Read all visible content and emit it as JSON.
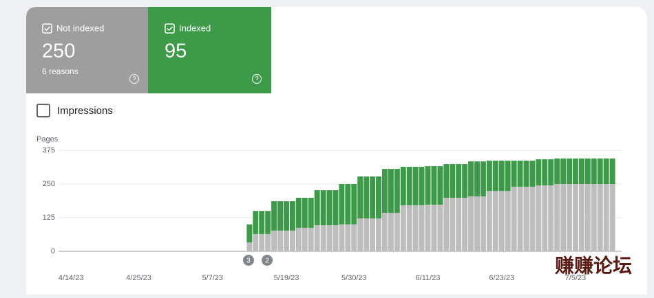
{
  "cards": [
    {
      "count": 250,
      "note": "6 reasons"
    },
    {
      "count": 95
    }
  ],
  "toggle": "Impressions",
  "watermark": "赚赚论坛",
  "chart_data": {
    "type": "bar",
    "stacked": true,
    "y_label": "Pages",
    "ylim": [
      0,
      375
    ],
    "yticks": [
      0,
      125,
      250,
      375
    ],
    "grid": true,
    "annotations": [
      "3",
      "2"
    ],
    "categories": [
      null,
      null,
      null,
      null,
      "4/14/23",
      null,
      null,
      null,
      null,
      null,
      null,
      null,
      null,
      null,
      null,
      "4/25/23",
      null,
      null,
      null,
      null,
      null,
      null,
      null,
      null,
      null,
      null,
      null,
      "5/7/23",
      null,
      null,
      null,
      null,
      null,
      null,
      null,
      null,
      null,
      null,
      null,
      "5/19/23",
      null,
      null,
      null,
      null,
      null,
      null,
      null,
      null,
      null,
      null,
      "5/30/23",
      null,
      null,
      null,
      null,
      null,
      null,
      null,
      null,
      null,
      null,
      null,
      "6/11/23",
      null,
      null,
      null,
      null,
      null,
      null,
      null,
      null,
      null,
      null,
      null,
      "6/23/23",
      null,
      null,
      null,
      null,
      null,
      null,
      null,
      null,
      null,
      null,
      null,
      "7/5/23",
      null,
      null,
      null,
      null,
      null,
      null,
      null
    ],
    "series": [
      {
        "name": "Not indexed",
        "color": "#bdbdbd",
        "values": [
          null,
          null,
          null,
          null,
          null,
          null,
          null,
          null,
          null,
          null,
          null,
          null,
          null,
          null,
          null,
          null,
          null,
          null,
          null,
          null,
          null,
          null,
          null,
          null,
          null,
          null,
          null,
          null,
          null,
          null,
          null,
          null,
          null,
          33,
          64,
          64,
          64,
          77,
          77,
          77,
          77,
          87,
          87,
          87,
          97,
          97,
          97,
          97,
          100,
          100,
          100,
          122,
          122,
          122,
          122,
          143,
          143,
          143,
          171,
          171,
          171,
          171,
          173,
          173,
          173,
          199,
          199,
          199,
          199,
          204,
          204,
          204,
          224,
          224,
          224,
          224,
          240,
          240,
          240,
          240,
          245,
          245,
          245,
          250,
          250,
          250,
          250,
          250,
          250,
          250,
          250,
          250,
          250,
          null
        ]
      },
      {
        "name": "Indexed",
        "color": "#3c9a48",
        "values": [
          null,
          null,
          null,
          null,
          null,
          null,
          null,
          null,
          null,
          null,
          null,
          null,
          null,
          null,
          null,
          null,
          null,
          null,
          null,
          null,
          null,
          null,
          null,
          null,
          null,
          null,
          null,
          null,
          null,
          null,
          null,
          null,
          null,
          67,
          86,
          86,
          86,
          109,
          109,
          109,
          109,
          112,
          112,
          112,
          130,
          130,
          130,
          130,
          150,
          150,
          150,
          156,
          156,
          156,
          156,
          163,
          163,
          163,
          143,
          143,
          143,
          143,
          143,
          143,
          143,
          125,
          125,
          125,
          125,
          130,
          130,
          130,
          113,
          113,
          113,
          113,
          97,
          97,
          97,
          97,
          97,
          97,
          97,
          95,
          95,
          95,
          95,
          95,
          95,
          95,
          95,
          95,
          95,
          null
        ]
      }
    ]
  }
}
